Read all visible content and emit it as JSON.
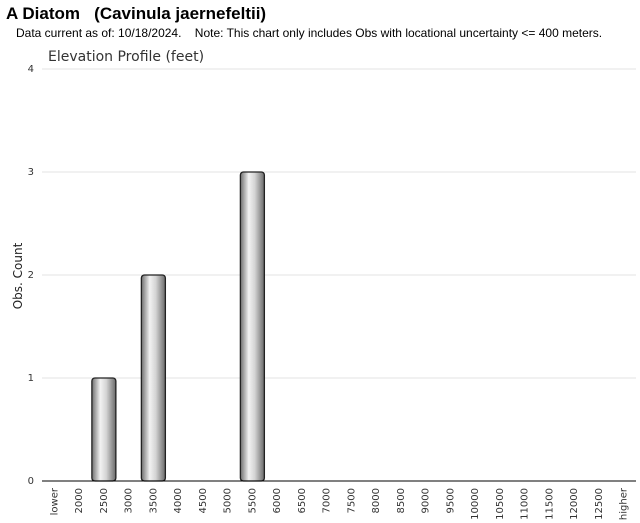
{
  "header": {
    "title": "A Diatom   (Cavinula jaernefeltii)",
    "subtitle": "Data current as of: 10/18/2024.    Note: This chart only includes Obs with locational uncertainty <= 400 meters."
  },
  "chart_data": {
    "type": "bar",
    "title": "Elevation Profile (feet)",
    "xlabel": "",
    "ylabel": "Obs. Count",
    "ylim": [
      0,
      4
    ],
    "yticks": [
      "0",
      "1",
      "2",
      "3",
      "4"
    ],
    "grid": true,
    "categories": [
      "lower",
      "2000",
      "2500",
      "3000",
      "3500",
      "4000",
      "4500",
      "5000",
      "5500",
      "6000",
      "6500",
      "7000",
      "7500",
      "8000",
      "8500",
      "9000",
      "9500",
      "10000",
      "10500",
      "11000",
      "11500",
      "12000",
      "12500",
      "higher"
    ],
    "values": [
      0,
      0,
      1,
      0,
      2,
      0,
      0,
      0,
      3,
      0,
      0,
      0,
      0,
      0,
      0,
      0,
      0,
      0,
      0,
      0,
      0,
      0,
      0,
      0
    ]
  }
}
